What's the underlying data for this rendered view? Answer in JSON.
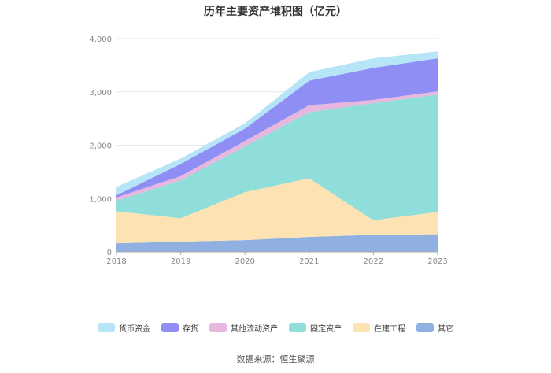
{
  "title": "历年主要资产堆积图（亿元）",
  "source": "数据来源：恒生聚源",
  "chart_data": {
    "type": "area",
    "stacked": true,
    "x": [
      "2018",
      "2019",
      "2020",
      "2021",
      "2022",
      "2023"
    ],
    "ylim": [
      0,
      4000
    ],
    "yticks": [
      "0",
      "1,000",
      "2,000",
      "3,000",
      "4,000"
    ],
    "ytick_values": [
      0,
      1000,
      2000,
      3000,
      4000
    ],
    "grid": true,
    "legend_position": "bottom",
    "series": [
      {
        "name": "其它",
        "color": "#8fb0e0",
        "values": [
          160,
          190,
          220,
          280,
          320,
          330
        ]
      },
      {
        "name": "在建工程",
        "color": "#fde3b4",
        "values": [
          600,
          440,
          900,
          1100,
          270,
          420
        ]
      },
      {
        "name": "固定资产",
        "color": "#8fded9",
        "values": [
          200,
          710,
          860,
          1240,
          2200,
          2200
        ]
      },
      {
        "name": "其他流动资产",
        "color": "#e7b7df",
        "values": [
          60,
          80,
          100,
          130,
          60,
          60
        ]
      },
      {
        "name": "存货",
        "color": "#8f8ef5",
        "values": [
          40,
          230,
          230,
          460,
          600,
          620
        ]
      },
      {
        "name": "货币资金",
        "color": "#b6e5f8",
        "values": [
          160,
          100,
          100,
          160,
          180,
          130
        ]
      }
    ]
  }
}
